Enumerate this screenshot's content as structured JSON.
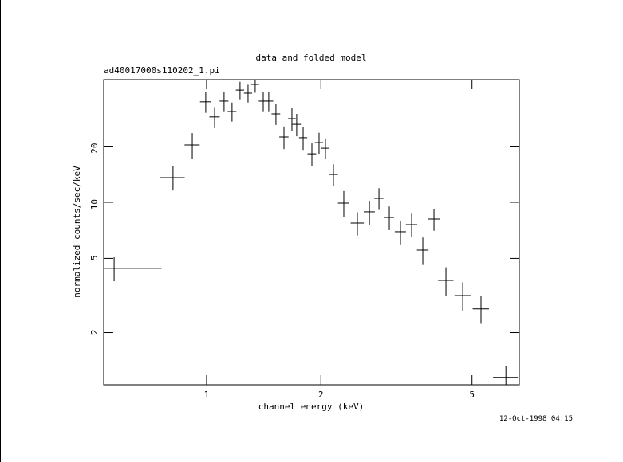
{
  "chart_data": {
    "type": "scatter",
    "title": "data and folded model",
    "subtitle": "ad40017000s110202_1.pi",
    "x_label": "channel energy (keV)",
    "y_label": "normalized counts/sec/keV",
    "footer": "12-Oct-1998 04:15",
    "x_log": true,
    "y_log": true,
    "color": "#000000",
    "xlim": [
      0.536,
      6.66
    ],
    "ylim": [
      1.05,
      45.5
    ],
    "xticks": [
      1,
      2,
      5
    ],
    "yticks": [
      2,
      5,
      10,
      20
    ],
    "x": [
      0.571,
      0.816,
      0.917,
      0.995,
      1.05,
      1.112,
      1.167,
      1.225,
      1.286,
      1.343,
      1.41,
      1.458,
      1.523,
      1.599,
      1.678,
      1.727,
      1.796,
      1.894,
      1.978,
      2.056,
      2.158,
      2.298,
      2.495,
      2.684,
      2.844,
      3.028,
      3.24,
      3.467,
      3.71,
      3.97,
      4.269,
      4.726,
      5.28,
      6.14
    ],
    "xerr": [
      0.19,
      0.06,
      0.042,
      0.034,
      0.033,
      0.03,
      0.031,
      0.031,
      0.032,
      0.033,
      0.038,
      0.04,
      0.04,
      0.045,
      0.04,
      0.045,
      0.045,
      0.05,
      0.05,
      0.05,
      0.06,
      0.08,
      0.1,
      0.09,
      0.08,
      0.09,
      0.11,
      0.12,
      0.13,
      0.14,
      0.2,
      0.23,
      0.26,
      0.46
    ],
    "values": [
      4.42,
      13.57,
      20.3,
      34.6,
      28.7,
      34.9,
      30.7,
      40.0,
      38.5,
      42.9,
      34.9,
      34.9,
      29.8,
      22.4,
      28.1,
      26.2,
      22.2,
      18.2,
      20.9,
      19.5,
      14.1,
      9.9,
      7.74,
      8.89,
      10.5,
      8.29,
      6.95,
      7.59,
      5.54,
      8.13,
      3.81,
      3.16,
      2.68,
      1.15
    ],
    "yerr": [
      0.65,
      2.0,
      3.2,
      4.4,
      3.7,
      4.1,
      3.6,
      4.3,
      4.2,
      4.2,
      4.1,
      4.1,
      3.8,
      3.1,
      3.9,
      3.6,
      3.1,
      2.5,
      2.7,
      2.5,
      1.9,
      1.6,
      1.1,
      1.3,
      1.4,
      1.2,
      1.0,
      1.1,
      0.93,
      1.1,
      0.67,
      0.56,
      0.45,
      0.17
    ]
  }
}
